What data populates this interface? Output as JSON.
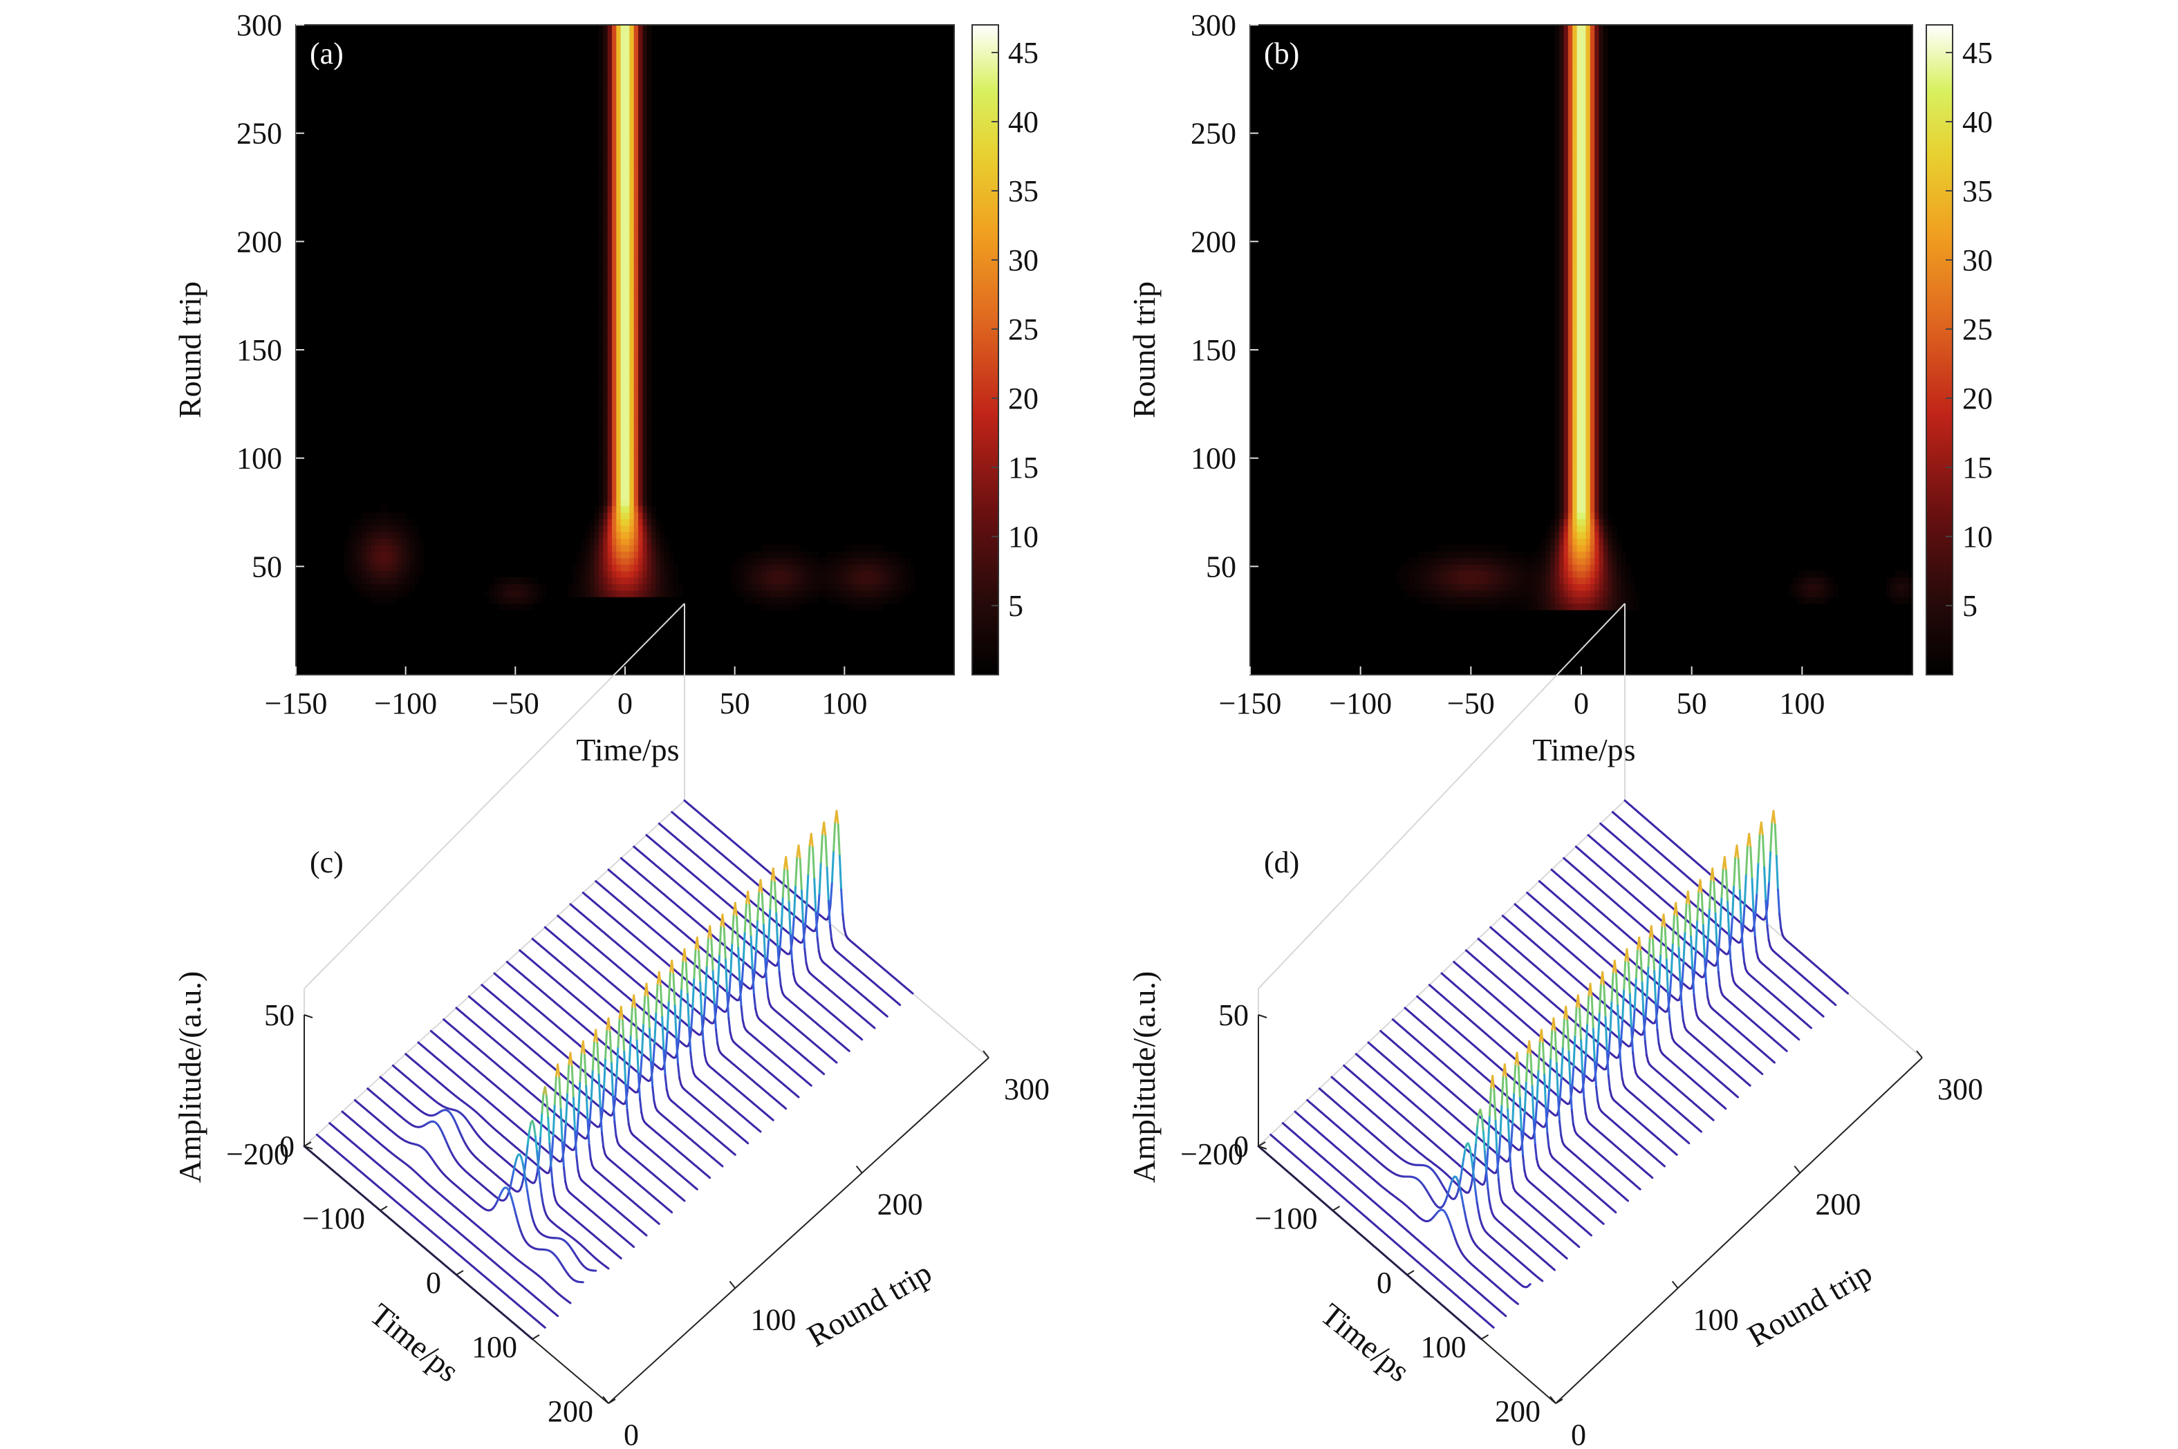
{
  "chart_data": [
    {
      "panel": "(a)",
      "type": "heatmap",
      "xlabel": "Time/ps",
      "ylabel": "Round trip",
      "xticks": [
        -150,
        -100,
        -50,
        0,
        50,
        100
      ],
      "yticks": [
        50,
        100,
        150,
        200,
        250,
        300
      ],
      "xlim": [
        -150,
        150
      ],
      "ylim": [
        0,
        300
      ],
      "colorbar": {
        "ticks": [
          5,
          10,
          15,
          20,
          25,
          30,
          35,
          40,
          45
        ],
        "range": [
          0,
          47
        ]
      },
      "pulse": {
        "center_ps": 0,
        "onset_round_trip": 35,
        "stable_round_trip": 80,
        "peak": 45
      },
      "noise_bursts": [
        {
          "t": -110,
          "n": 55,
          "a": 9,
          "wt": 12,
          "wn": 14
        },
        {
          "t": -50,
          "n": 38,
          "a": 5,
          "wt": 10,
          "wn": 6
        },
        {
          "t": 70,
          "n": 45,
          "a": 7,
          "wt": 15,
          "wn": 10
        },
        {
          "t": 110,
          "n": 45,
          "a": 7,
          "wt": 15,
          "wn": 10
        }
      ]
    },
    {
      "panel": "(b)",
      "type": "heatmap",
      "xlabel": "Time/ps",
      "ylabel": "Round trip",
      "xticks": [
        -150,
        -100,
        -50,
        0,
        50,
        100
      ],
      "yticks": [
        50,
        100,
        150,
        200,
        250,
        300
      ],
      "xlim": [
        -150,
        150
      ],
      "ylim": [
        0,
        300
      ],
      "colorbar": {
        "ticks": [
          5,
          10,
          15,
          20,
          25,
          30,
          35,
          40,
          45
        ],
        "range": [
          0,
          47
        ]
      },
      "pulse": {
        "center_ps": 0,
        "onset_round_trip": 30,
        "stable_round_trip": 75,
        "peak": 45
      },
      "noise_bursts": [
        {
          "t": -50,
          "n": 45,
          "a": 8,
          "wt": 22,
          "wn": 10
        },
        {
          "t": 105,
          "n": 40,
          "a": 5,
          "wt": 8,
          "wn": 6
        },
        {
          "t": 145,
          "n": 40,
          "a": 4,
          "wt": 6,
          "wn": 6
        }
      ]
    },
    {
      "panel": "(c)",
      "type": "waterfall",
      "zlabel": "Amplitude/(a.u.)",
      "xlabel": "Time/ps",
      "ylabel": "Round trip",
      "zticks": [
        0,
        50
      ],
      "xticks": [
        -200,
        -100,
        0,
        100,
        200
      ],
      "yticks": [
        0,
        100,
        200,
        300
      ],
      "xlim": [
        -200,
        200
      ],
      "ylim": [
        0,
        300
      ],
      "zlim": [
        0,
        50
      ],
      "round_trip_step": 10,
      "pulse": {
        "onset_round_trip": 35,
        "peak": 45
      },
      "noise_bursts": [
        {
          "t": -110,
          "n": 55,
          "a": 10,
          "wt": 18,
          "wn": 15
        },
        {
          "t": 60,
          "n": 45,
          "a": 7,
          "wt": 20,
          "wn": 10
        },
        {
          "t": 110,
          "n": 45,
          "a": 7,
          "wt": 18,
          "wn": 10
        }
      ]
    },
    {
      "panel": "(d)",
      "type": "waterfall",
      "zlabel": "Amplitude/(a.u.)",
      "xlabel": "Time/ps",
      "ylabel": "Round trip",
      "zticks": [
        0,
        50
      ],
      "xticks": [
        -200,
        -100,
        0,
        100,
        200
      ],
      "yticks": [
        0,
        100,
        200,
        300
      ],
      "xlim": [
        -200,
        200
      ],
      "ylim": [
        0,
        300
      ],
      "zlim": [
        0,
        50
      ],
      "round_trip_step": 10,
      "pulse": {
        "onset_round_trip": 30,
        "peak": 45
      },
      "noise_bursts": [
        {
          "t": -50,
          "n": 45,
          "a": 8,
          "wt": 22,
          "wn": 10
        },
        {
          "t": 105,
          "n": 40,
          "a": 5,
          "wt": 8,
          "wn": 6
        }
      ]
    }
  ]
}
